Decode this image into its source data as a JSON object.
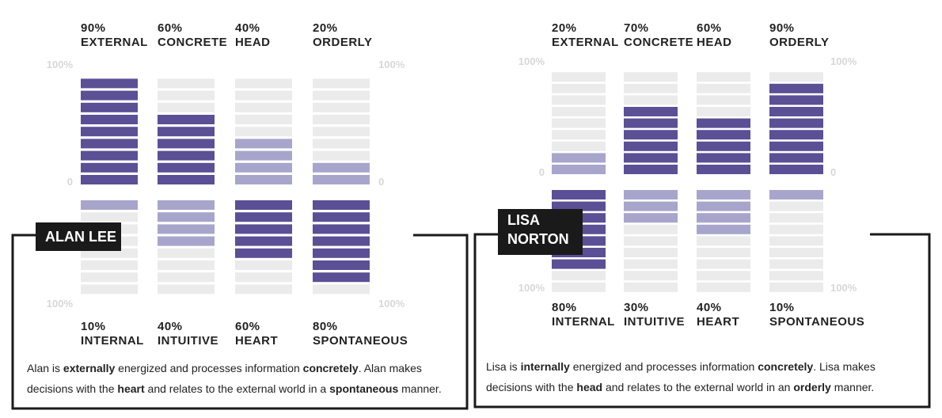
{
  "colors": {
    "dark": "#5b4f95",
    "light": "#a8a5cc",
    "track": "#ebebeb",
    "axis": "#d7d7d7"
  },
  "chart_data": [
    {
      "type": "bar",
      "profile": "ALAN LEE",
      "ylim": [
        100,
        0,
        100
      ],
      "tick_labels": {
        "top": "100%",
        "mid": "0",
        "bottom": "100%"
      },
      "categories_top": [
        "EXTERNAL",
        "CONCRETE",
        "HEAD",
        "ORDERLY"
      ],
      "categories_bottom": [
        "INTERNAL",
        "INTUITIVE",
        "HEART",
        "SPONTANEOUS"
      ],
      "top_labels": [
        "90%",
        "60%",
        "40%",
        "20%"
      ],
      "bottom_labels": [
        "10%",
        "40%",
        "60%",
        "80%"
      ],
      "top_values": [
        90,
        60,
        40,
        20
      ],
      "bottom_values": [
        10,
        40,
        60,
        80
      ],
      "dominant": [
        "top",
        "top",
        "bottom",
        "bottom"
      ]
    },
    {
      "type": "bar",
      "profile": "LISA NORTON",
      "ylim": [
        100,
        0,
        100
      ],
      "tick_labels": {
        "top": "100%",
        "mid": "0",
        "bottom": "100%"
      },
      "categories_top": [
        "EXTERNAL",
        "CONCRETE",
        "HEAD",
        "ORDERLY"
      ],
      "categories_bottom": [
        "INTERNAL",
        "INTUITIVE",
        "HEART",
        "SPONTANEOUS"
      ],
      "top_labels": [
        "20%",
        "70%",
        "60%",
        "90%"
      ],
      "bottom_labels": [
        "80%",
        "30%",
        "40%",
        "10%"
      ],
      "top_values": [
        20,
        70,
        60,
        90
      ],
      "bottom_values": [
        80,
        30,
        40,
        10
      ],
      "dominant": [
        "bottom",
        "top",
        "top",
        "top"
      ]
    }
  ],
  "profiles": [
    {
      "name_lines": [
        "ALAN LEE"
      ],
      "description": [
        {
          "t": "Alan is "
        },
        {
          "t": "externally",
          "b": true
        },
        {
          "t": " energized and processes information "
        },
        {
          "t": "concretely",
          "b": true
        },
        {
          "t": ". Alan makes decisions with the "
        },
        {
          "t": "heart",
          "b": true
        },
        {
          "t": " and relates to the external world in a "
        },
        {
          "t": "spontaneous",
          "b": true
        },
        {
          "t": " manner."
        }
      ]
    },
    {
      "name_lines": [
        "LISA",
        "NORTON"
      ],
      "description": [
        {
          "t": "Lisa is "
        },
        {
          "t": "internally",
          "b": true
        },
        {
          "t": " energized and processes information "
        },
        {
          "t": "concretely",
          "b": true
        },
        {
          "t": ". Lisa makes decisions with the "
        },
        {
          "t": "head",
          "b": true
        },
        {
          "t": " and relates to the external world in an "
        },
        {
          "t": "orderly",
          "b": true
        },
        {
          "t": " manner."
        }
      ]
    }
  ]
}
